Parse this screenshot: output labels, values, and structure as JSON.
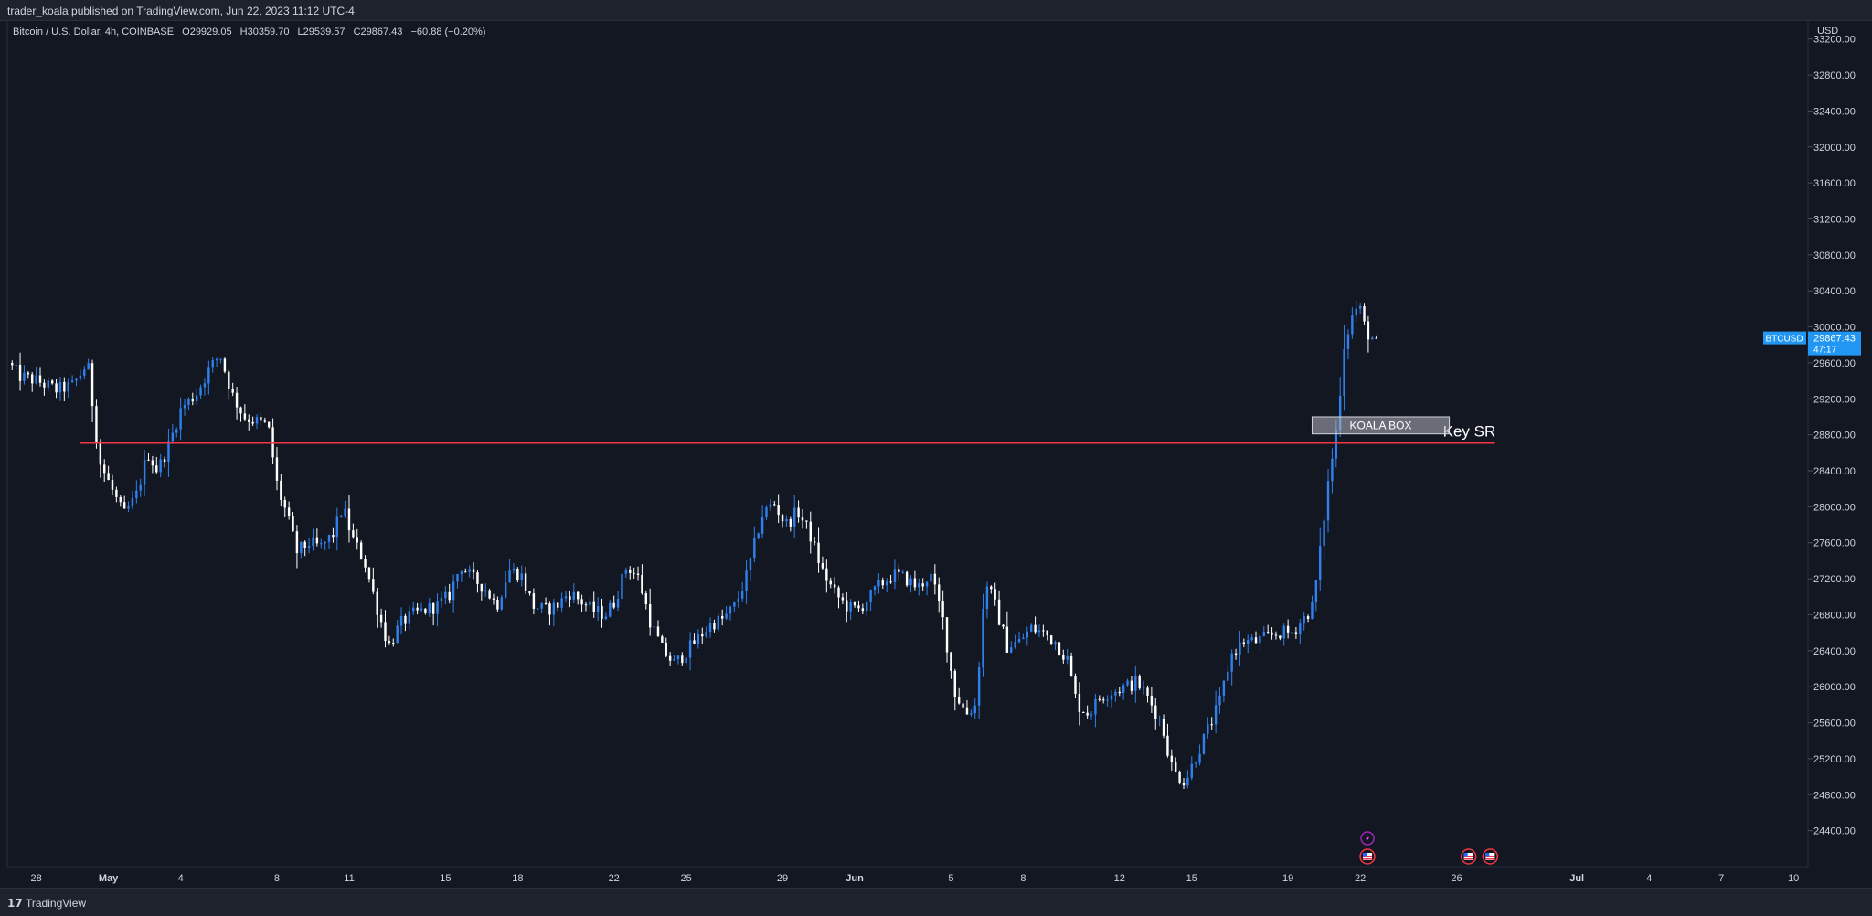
{
  "header": {
    "published": "trader_koala published on TradingView.com, Jun 22, 2023 11:12 UTC-4"
  },
  "symbol_line": {
    "name": "Bitcoin / U.S. Dollar, 4h, COINBASE",
    "open": "O29929.05",
    "high": "H30359.70",
    "low": "L29539.57",
    "close": "C29867.43",
    "change": "−60.88 (−0.20%)"
  },
  "footer": {
    "logo": "𝟭𝟳",
    "brand": "TradingView"
  },
  "colors": {
    "background": "#131722",
    "up_candle": "#2f80ed",
    "down_candle": "#ffffff",
    "key_line": "#f23645",
    "price_label": "#2196f3",
    "box_fill": "#b2b5be"
  },
  "chart_data": {
    "type": "candlestick",
    "currency": "USD",
    "ylim": [
      24000,
      33400
    ],
    "y_ticks": [
      24400,
      24800,
      25200,
      25600,
      26000,
      26400,
      26800,
      27200,
      27600,
      28000,
      28400,
      28800,
      29200,
      29600,
      30000,
      30400,
      30800,
      31200,
      31600,
      32000,
      32400,
      32800,
      33200
    ],
    "y_tick_labels": [
      "24400.00",
      "24800.00",
      "25200.00",
      "25600.00",
      "26000.00",
      "26400.00",
      "26800.00",
      "27200.00",
      "27600.00",
      "28000.00",
      "28400.00",
      "28800.00",
      "29200.00",
      "29600.00",
      "30000.00",
      "30400.00",
      "30800.00",
      "31200.00",
      "31600.00",
      "32000.00",
      "32400.00",
      "32800.00",
      "33200.00"
    ],
    "x_range_days": [
      -3.2,
      71.6
    ],
    "x_ticks": [
      {
        "day": -2,
        "label": "28",
        "bold": false
      },
      {
        "day": 1,
        "label": "May",
        "bold": true
      },
      {
        "day": 4,
        "label": "4",
        "bold": false
      },
      {
        "day": 8,
        "label": "8",
        "bold": false
      },
      {
        "day": 11,
        "label": "11",
        "bold": false
      },
      {
        "day": 15,
        "label": "15",
        "bold": false
      },
      {
        "day": 18,
        "label": "18",
        "bold": false
      },
      {
        "day": 22,
        "label": "22",
        "bold": false
      },
      {
        "day": 25,
        "label": "25",
        "bold": false
      },
      {
        "day": 29,
        "label": "29",
        "bold": false
      },
      {
        "day": 32,
        "label": "Jun",
        "bold": true
      },
      {
        "day": 36,
        "label": "5",
        "bold": false
      },
      {
        "day": 39,
        "label": "8",
        "bold": false
      },
      {
        "day": 43,
        "label": "12",
        "bold": false
      },
      {
        "day": 46,
        "label": "15",
        "bold": false
      },
      {
        "day": 50,
        "label": "19",
        "bold": false
      },
      {
        "day": 53,
        "label": "22",
        "bold": false
      },
      {
        "day": 57,
        "label": "26",
        "bold": false
      },
      {
        "day": 62,
        "label": "Jul",
        "bold": true
      },
      {
        "day": 65,
        "label": "4",
        "bold": false
      },
      {
        "day": 68,
        "label": "7",
        "bold": false
      },
      {
        "day": 71,
        "label": "10",
        "bold": false
      }
    ],
    "price_path": [
      [
        -3.0,
        29600
      ],
      [
        -2.5,
        29450
      ],
      [
        -1.8,
        29400
      ],
      [
        -1.0,
        29300
      ],
      [
        -0.3,
        29350
      ],
      [
        0.3,
        29600
      ],
      [
        0.8,
        28500
      ],
      [
        1.3,
        28200
      ],
      [
        1.8,
        27900
      ],
      [
        2.3,
        28100
      ],
      [
        2.8,
        28600
      ],
      [
        3.2,
        28400
      ],
      [
        3.7,
        28700
      ],
      [
        4.2,
        29100
      ],
      [
        4.8,
        29250
      ],
      [
        5.3,
        29500
      ],
      [
        5.8,
        29700
      ],
      [
        6.3,
        29250
      ],
      [
        6.8,
        29000
      ],
      [
        7.3,
        28950
      ],
      [
        7.8,
        28900
      ],
      [
        8.2,
        28200
      ],
      [
        8.6,
        27900
      ],
      [
        9.0,
        27500
      ],
      [
        9.5,
        27600
      ],
      [
        10.0,
        27550
      ],
      [
        10.5,
        27700
      ],
      [
        10.9,
        28000
      ],
      [
        11.3,
        27650
      ],
      [
        11.8,
        27400
      ],
      [
        12.3,
        26900
      ],
      [
        12.8,
        26450
      ],
      [
        13.3,
        26700
      ],
      [
        13.8,
        26800
      ],
      [
        14.3,
        26850
      ],
      [
        14.8,
        26900
      ],
      [
        15.3,
        27000
      ],
      [
        15.8,
        27350
      ],
      [
        16.3,
        27200
      ],
      [
        16.8,
        27100
      ],
      [
        17.3,
        26900
      ],
      [
        17.8,
        27300
      ],
      [
        18.3,
        27250
      ],
      [
        18.8,
        26900
      ],
      [
        19.3,
        26850
      ],
      [
        19.8,
        26900
      ],
      [
        20.3,
        27050
      ],
      [
        20.8,
        26950
      ],
      [
        21.3,
        26850
      ],
      [
        21.8,
        26800
      ],
      [
        22.2,
        26950
      ],
      [
        22.7,
        27350
      ],
      [
        23.2,
        27200
      ],
      [
        23.7,
        26700
      ],
      [
        24.2,
        26400
      ],
      [
        24.7,
        26250
      ],
      [
        25.2,
        26400
      ],
      [
        25.7,
        26550
      ],
      [
        26.2,
        26700
      ],
      [
        26.7,
        26750
      ],
      [
        27.2,
        26900
      ],
      [
        27.7,
        27250
      ],
      [
        28.3,
        27900
      ],
      [
        28.8,
        28050
      ],
      [
        29.3,
        27800
      ],
      [
        29.8,
        27950
      ],
      [
        30.3,
        27700
      ],
      [
        30.8,
        27300
      ],
      [
        31.3,
        27050
      ],
      [
        31.8,
        26900
      ],
      [
        32.3,
        26850
      ],
      [
        32.8,
        27000
      ],
      [
        33.3,
        27150
      ],
      [
        33.8,
        27250
      ],
      [
        34.3,
        27200
      ],
      [
        34.8,
        27100
      ],
      [
        35.3,
        27250
      ],
      [
        35.8,
        26800
      ],
      [
        36.3,
        25950
      ],
      [
        36.8,
        25700
      ],
      [
        37.2,
        25800
      ],
      [
        37.6,
        27200
      ],
      [
        38.0,
        26900
      ],
      [
        38.5,
        26450
      ],
      [
        39.0,
        26500
      ],
      [
        39.5,
        26650
      ],
      [
        40.0,
        26600
      ],
      [
        40.5,
        26500
      ],
      [
        41.0,
        26300
      ],
      [
        41.4,
        25800
      ],
      [
        41.9,
        25700
      ],
      [
        42.4,
        25900
      ],
      [
        42.9,
        25950
      ],
      [
        43.4,
        26000
      ],
      [
        43.9,
        26050
      ],
      [
        44.4,
        25850
      ],
      [
        44.9,
        25600
      ],
      [
        45.4,
        25050
      ],
      [
        45.9,
        24950
      ],
      [
        46.3,
        25200
      ],
      [
        46.8,
        25500
      ],
      [
        47.3,
        25800
      ],
      [
        47.8,
        26350
      ],
      [
        48.3,
        26500
      ],
      [
        48.8,
        26500
      ],
      [
        49.3,
        26550
      ],
      [
        49.8,
        26600
      ],
      [
        50.3,
        26600
      ],
      [
        50.8,
        26750
      ],
      [
        51.2,
        26900
      ],
      [
        51.5,
        27500
      ],
      [
        51.8,
        28200
      ],
      [
        52.2,
        28900
      ],
      [
        52.5,
        29800
      ],
      [
        52.8,
        30100
      ],
      [
        53.1,
        30250
      ],
      [
        53.4,
        29950
      ],
      [
        53.7,
        29867
      ]
    ],
    "key_level": {
      "price": 28710,
      "label": "Key SR",
      "from_day": -0.2,
      "to_day": 58.6
    },
    "box": {
      "label": "KOALA BOX",
      "from_day": 51.0,
      "to_day": 56.7,
      "price_low": 28810,
      "price_high": 29000
    },
    "last_price": {
      "symbol": "BTCUSD",
      "price": "29867.43",
      "countdown": "47:17",
      "value": 29867.43
    },
    "events": [
      {
        "day": 53.3,
        "icon": "lightning-event-icon",
        "row": 1
      },
      {
        "day": 53.3,
        "icon": "us-flag-event-icon",
        "row": 2
      },
      {
        "day": 57.5,
        "icon": "us-flag-event-icon",
        "row": 2
      },
      {
        "day": 58.4,
        "icon": "us-flag-event-icon",
        "row": 2
      }
    ]
  }
}
